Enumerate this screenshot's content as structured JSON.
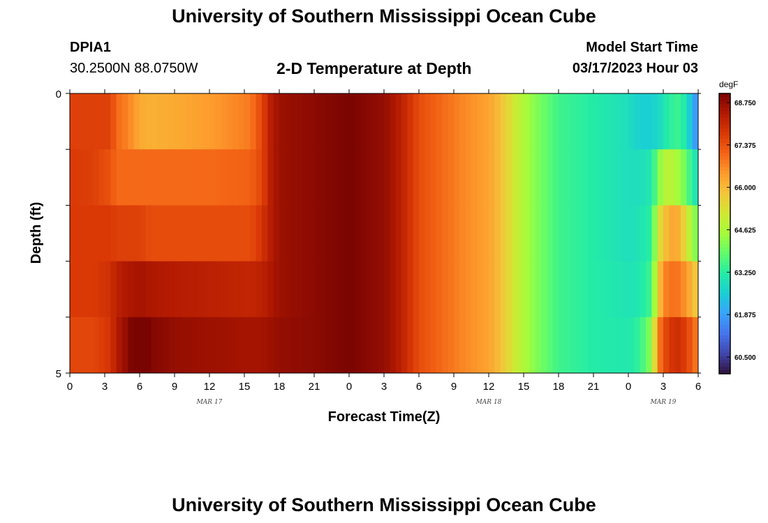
{
  "header": {
    "title": "University of Southern Mississippi Ocean Cube",
    "station_id": "DPIA1",
    "coords": "30.2500N  88.0750W",
    "subtitle": "2-D Temperature at Depth",
    "model_start_label": "Model Start Time",
    "model_start_value": "03/17/2023 Hour 03"
  },
  "footer": {
    "title": "University of Southern Mississippi Ocean Cube"
  },
  "chart_data": {
    "type": "heatmap",
    "xlabel": "Forecast Time(Z)",
    "ylabel": "Depth (ft)",
    "colorbar_unit": "degF",
    "x_tick_labels": [
      "0",
      "3",
      "6",
      "9",
      "12",
      "15",
      "18",
      "21",
      "0",
      "3",
      "6",
      "9",
      "12",
      "15",
      "18",
      "21",
      "0",
      "3",
      "6"
    ],
    "month_labels": [
      {
        "label": "MAR 17",
        "tick_index": 4
      },
      {
        "label": "MAR 18",
        "tick_index": 12
      },
      {
        "label": "MAR 19",
        "tick_index": 17
      }
    ],
    "y_tick_labels": [
      "0",
      "5"
    ],
    "ylim": [
      0,
      5
    ],
    "x_range_hours": [
      0,
      54
    ],
    "colorbar_ticks": [
      "68.750",
      "67.375",
      "66.000",
      "64.625",
      "63.250",
      "61.875",
      "60.500"
    ],
    "value_range": [
      60.0,
      69.0
    ],
    "depth_rows": [
      0.5,
      1.5,
      2.5,
      3.5,
      4.5
    ],
    "time_keypoints": [
      {
        "t": 0,
        "v": [
          67.6,
          67.7,
          67.7,
          67.7,
          67.5
        ]
      },
      {
        "t": 2,
        "v": [
          67.6,
          67.6,
          67.7,
          67.7,
          67.5
        ]
      },
      {
        "t": 3.5,
        "v": [
          67.6,
          67.3,
          67.7,
          67.9,
          67.8
        ]
      },
      {
        "t": 4,
        "v": [
          67.0,
          67.0,
          67.6,
          68.2,
          68.3
        ]
      },
      {
        "t": 5,
        "v": [
          66.7,
          67.0,
          67.6,
          68.4,
          68.8
        ]
      },
      {
        "t": 6,
        "v": [
          66.2,
          67.0,
          67.6,
          68.5,
          69.4
        ]
      },
      {
        "t": 7,
        "v": [
          66.1,
          67.0,
          67.4,
          68.4,
          68.9
        ]
      },
      {
        "t": 9,
        "v": [
          66.2,
          67.0,
          67.4,
          68.3,
          68.7
        ]
      },
      {
        "t": 12,
        "v": [
          66.4,
          67.0,
          67.4,
          68.2,
          68.6
        ]
      },
      {
        "t": 15.5,
        "v": [
          66.8,
          67.1,
          67.4,
          68.1,
          68.5
        ]
      },
      {
        "t": 16.5,
        "v": [
          67.5,
          67.5,
          67.8,
          68.2,
          68.5
        ]
      },
      {
        "t": 17.3,
        "v": [
          68.3,
          68.3,
          68.3,
          68.4,
          68.6
        ]
      },
      {
        "t": 18,
        "v": [
          68.6,
          68.6,
          68.6,
          68.6,
          68.7
        ]
      },
      {
        "t": 21,
        "v": [
          68.8,
          68.8,
          68.8,
          68.8,
          68.8
        ]
      },
      {
        "t": 24,
        "v": [
          69.0,
          69.0,
          69.0,
          69.0,
          69.0
        ]
      },
      {
        "t": 27,
        "v": [
          68.7,
          68.7,
          68.7,
          68.7,
          68.7
        ]
      },
      {
        "t": 28.5,
        "v": [
          68.2,
          68.2,
          68.2,
          68.2,
          68.2
        ]
      },
      {
        "t": 30,
        "v": [
          67.4,
          67.4,
          67.4,
          67.4,
          67.4
        ]
      },
      {
        "t": 33,
        "v": [
          66.8,
          66.8,
          66.8,
          66.8,
          66.8
        ]
      },
      {
        "t": 36,
        "v": [
          66.3,
          66.3,
          66.3,
          66.3,
          66.3
        ]
      },
      {
        "t": 37,
        "v": [
          65.9,
          65.9,
          65.9,
          65.9,
          65.9
        ]
      },
      {
        "t": 38.5,
        "v": [
          64.9,
          64.9,
          64.9,
          64.9,
          64.9
        ]
      },
      {
        "t": 40,
        "v": [
          64.2,
          64.2,
          64.2,
          64.2,
          64.2
        ]
      },
      {
        "t": 42,
        "v": [
          63.5,
          63.5,
          63.5,
          63.5,
          63.5
        ]
      },
      {
        "t": 45,
        "v": [
          63.2,
          63.2,
          63.2,
          63.2,
          63.2
        ]
      },
      {
        "t": 48,
        "v": [
          62.9,
          62.9,
          62.9,
          63.0,
          63.1
        ]
      },
      {
        "t": 49,
        "v": [
          62.6,
          62.9,
          63.0,
          63.1,
          63.4
        ]
      },
      {
        "t": 50,
        "v": [
          62.6,
          63.1,
          63.3,
          63.5,
          64.3
        ]
      },
      {
        "t": 50.5,
        "v": [
          62.7,
          64.0,
          65.0,
          65.5,
          66.5
        ]
      },
      {
        "t": 51,
        "v": [
          63.0,
          64.7,
          65.8,
          66.6,
          67.4
        ]
      },
      {
        "t": 51.5,
        "v": [
          63.3,
          64.9,
          66.1,
          66.9,
          67.6
        ]
      },
      {
        "t": 52,
        "v": [
          63.4,
          64.6,
          66.3,
          66.9,
          68.0
        ]
      },
      {
        "t": 52.5,
        "v": [
          63.5,
          64.4,
          66.0,
          66.8,
          67.8
        ]
      },
      {
        "t": 53,
        "v": [
          62.9,
          63.8,
          65.2,
          66.4,
          67.6
        ]
      },
      {
        "t": 53.5,
        "v": [
          62.2,
          63.3,
          64.5,
          66.0,
          67.1
        ]
      },
      {
        "t": 54,
        "v": [
          61.5,
          62.8,
          63.9,
          65.6,
          66.7
        ]
      }
    ],
    "colorscale": [
      "#30123b",
      "#4145ab",
      "#4675ed",
      "#39a2fc",
      "#1bcfd4",
      "#24eca6",
      "#61fc6c",
      "#a4fc3b",
      "#d1e834",
      "#f3c63a",
      "#fe9b2d",
      "#f36315",
      "#d93806",
      "#b11901",
      "#7a0402"
    ]
  }
}
